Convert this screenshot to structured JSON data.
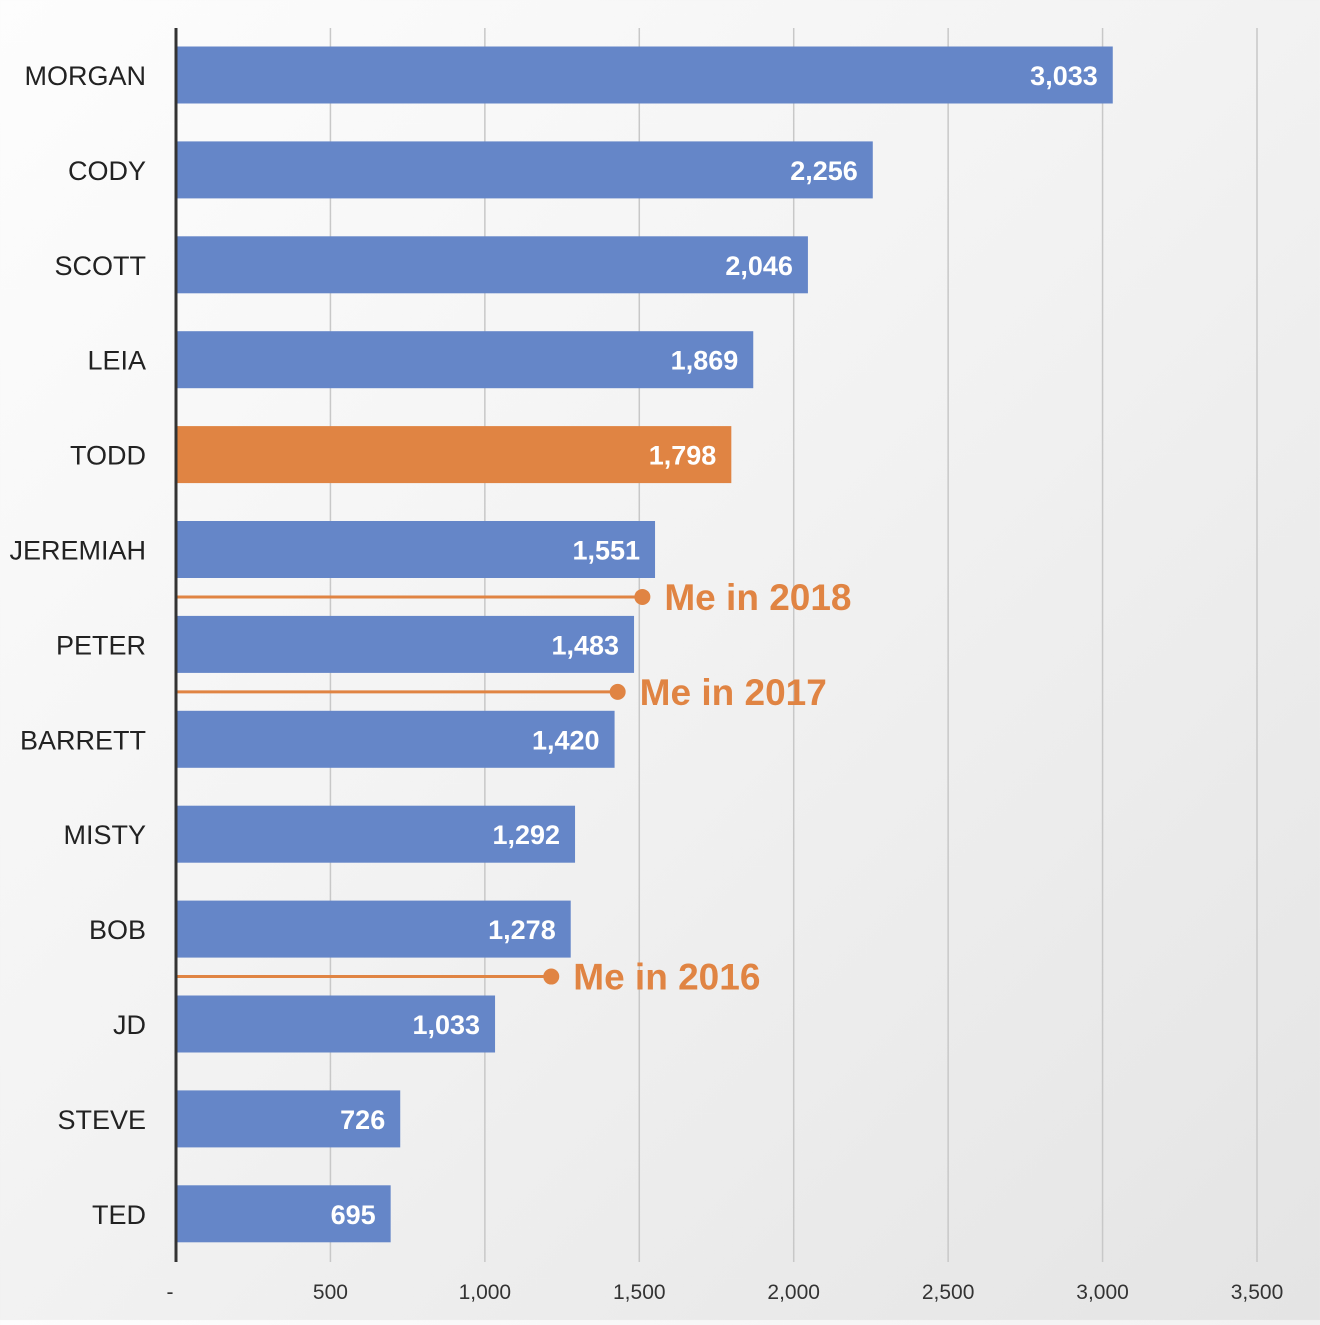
{
  "chart_data": {
    "type": "bar",
    "orientation": "horizontal",
    "categories": [
      "MORGAN",
      "CODY",
      "SCOTT",
      "LEIA",
      "TODD",
      "JEREMIAH",
      "PETER",
      "BARRETT",
      "MISTY",
      "BOB",
      "JD",
      "STEVE",
      "TED"
    ],
    "values": [
      3033,
      2256,
      2046,
      1869,
      1798,
      1551,
      1483,
      1420,
      1292,
      1278,
      1033,
      726,
      695
    ],
    "value_labels": [
      "3,033",
      "2,256",
      "2,046",
      "1,869",
      "1,798",
      "1,551",
      "1,483",
      "1,420",
      "1,292",
      "1,278",
      "1,033",
      "726",
      "695"
    ],
    "highlight_category": "TODD",
    "xlim": [
      0,
      3500
    ],
    "x_ticks": [
      0,
      500,
      1000,
      1500,
      2000,
      2500,
      3000,
      3500
    ],
    "x_tick_labels": [
      "-",
      "500",
      "1,000",
      "1,500",
      "2,000",
      "2,500",
      "3,000",
      "3,500"
    ],
    "grid": true,
    "title": "",
    "xlabel": "",
    "ylabel": "",
    "annotations": [
      {
        "label": "Me in 2018",
        "value": 1510,
        "between": [
          "JEREMIAH",
          "PETER"
        ]
      },
      {
        "label": "Me in 2017",
        "value": 1430,
        "between": [
          "PETER",
          "BARRETT"
        ]
      },
      {
        "label": "Me in 2016",
        "value": 1215,
        "between": [
          "BOB",
          "JD"
        ]
      }
    ],
    "colors": {
      "bar": "#6586c8",
      "highlight": "#e08443",
      "annotation": "#e08443",
      "value_label": "#ffffff"
    }
  }
}
